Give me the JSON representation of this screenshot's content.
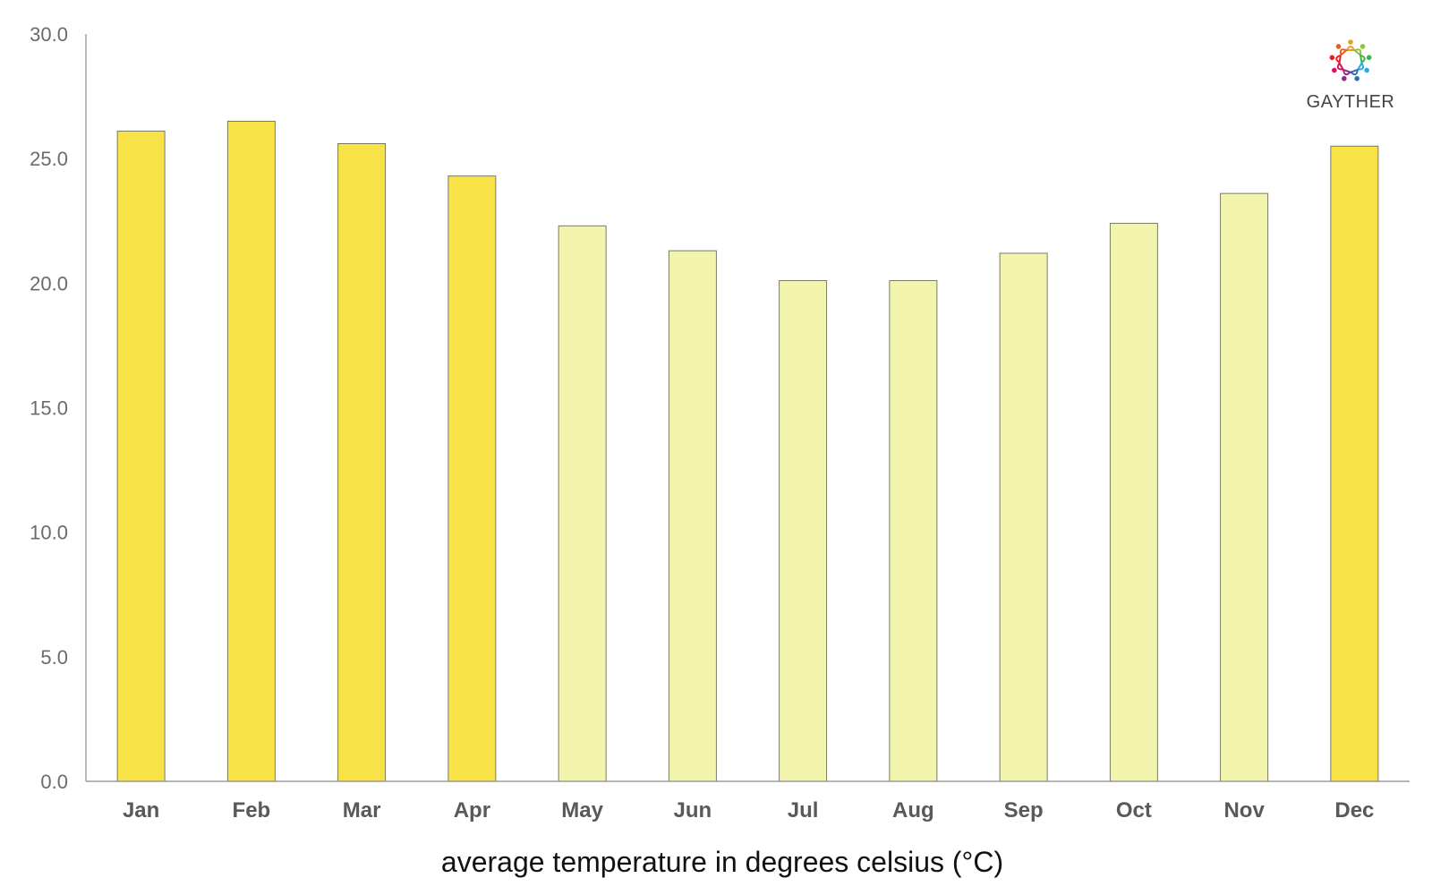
{
  "chart_data": {
    "type": "bar",
    "title": "",
    "xlabel": "average temperature in degrees celsius (°C)",
    "ylabel": "",
    "ylim": [
      0,
      30
    ],
    "yticks": [
      "0.0",
      "5.0",
      "10.0",
      "15.0",
      "20.0",
      "25.0",
      "30.0"
    ],
    "grid": false,
    "categories": [
      "Jan",
      "Feb",
      "Mar",
      "Apr",
      "May",
      "Jun",
      "Jul",
      "Aug",
      "Sep",
      "Oct",
      "Nov",
      "Dec"
    ],
    "values": [
      26.1,
      26.5,
      25.6,
      24.3,
      22.3,
      21.3,
      20.1,
      20.1,
      21.2,
      22.4,
      23.6,
      25.5
    ],
    "highlight": [
      true,
      true,
      true,
      true,
      false,
      false,
      false,
      false,
      false,
      false,
      false,
      true
    ]
  },
  "colors": {
    "highlight_bar": "#f7e248",
    "normal_bar": "#f2f4ae",
    "bar_stroke": "#6e6e5a",
    "axis": "#8a8a8a"
  },
  "logo": {
    "name": "GAYTHER",
    "icon": "people-circle-icon"
  }
}
